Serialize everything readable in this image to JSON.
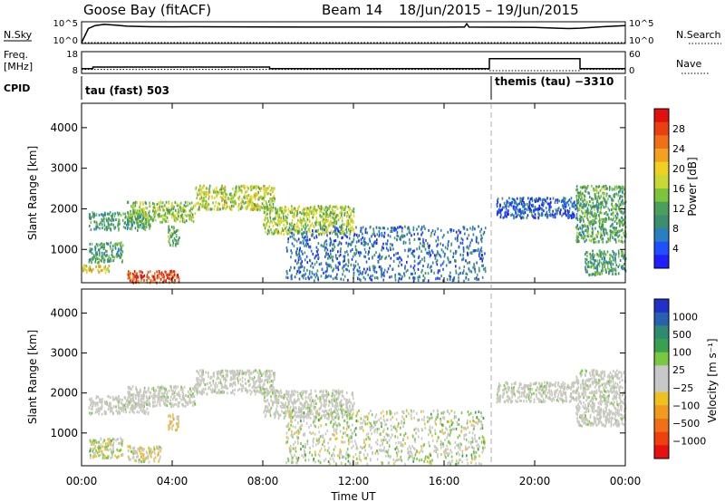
{
  "header": {
    "station": "Goose Bay (fitACF)",
    "beam": "Beam 14",
    "dates": "18/Jun/2015 – 19/Jun/2015"
  },
  "noise_panel": {
    "left_label": "N.Sky",
    "right_label": "N.Search",
    "ticks_left": [
      "10^5",
      "10^0"
    ],
    "ticks_right": [
      "10^5",
      "10^0"
    ]
  },
  "freq_panel": {
    "left_label_1": "Freq.",
    "left_label_2": "[MHz]",
    "right_label": "Nave",
    "ticks_left": [
      "18",
      "8"
    ],
    "ticks_right": [
      "60",
      "0"
    ]
  },
  "cpid": {
    "label": "CPID",
    "mode_1": "tau (fast) 503",
    "mode_2": "themis (tau) −3310"
  },
  "x_axis": {
    "label": "Time UT",
    "ticks": [
      "00:00",
      "04:00",
      "08:00",
      "12:00",
      "16:00",
      "20:00",
      "00:00"
    ]
  },
  "power_panel": {
    "ylabel": "Slant Range [km]",
    "yticks": [
      "1000",
      "2000",
      "3000",
      "4000"
    ],
    "colorbar_label": "Power [dB]",
    "colorbar_ticks": [
      "4",
      "8",
      "12",
      "16",
      "20",
      "24",
      "28"
    ],
    "colorbar_colors": [
      "#1e1eff",
      "#1e50ff",
      "#2a7fbf",
      "#3b8e6f",
      "#4aa05a",
      "#7cc43a",
      "#c8d834",
      "#f0d020",
      "#f4a020",
      "#f07018",
      "#e84010",
      "#e01010"
    ]
  },
  "velocity_panel": {
    "ylabel": "Slant Range [km]",
    "yticks": [
      "1000",
      "2000",
      "3000",
      "4000"
    ],
    "colorbar_label": "Velocity [m s⁻¹]",
    "colorbar_ticks": [
      "1000",
      "500",
      "100",
      "25",
      "−25",
      "−100",
      "−500",
      "−1000"
    ],
    "colorbar_colors": [
      "#2030c8",
      "#2a60b0",
      "#2e8a70",
      "#3aa050",
      "#78c840",
      "#c8c8c8",
      "#c8c8c8",
      "#f0c020",
      "#f09a20",
      "#f07018",
      "#f04010",
      "#e81010"
    ]
  },
  "chart_data": [
    {
      "type": "line",
      "title": "N.Sky / N.Search",
      "x_range_hours": [
        0,
        24
      ],
      "y_scale": "log",
      "ylim": [
        1,
        100000
      ],
      "series": [
        {
          "name": "N.Sky",
          "x": [
            0,
            0.3,
            0.6,
            1,
            1.5,
            2,
            3,
            4,
            5,
            6,
            8,
            10,
            12,
            14,
            16,
            16.9,
            17.0,
            17.1,
            18,
            20,
            21,
            21.5,
            22,
            23,
            24
          ],
          "y": [
            1,
            5000,
            30000,
            60000,
            40000,
            20000,
            15000,
            14000,
            15000,
            14000,
            13000,
            12000,
            12000,
            11000,
            11000,
            12000,
            90000,
            12000,
            11000,
            10000,
            6000,
            5000,
            6000,
            15000,
            30000
          ]
        },
        {
          "name": "N.Search",
          "x": [
            0,
            24
          ],
          "y": [
            1,
            1
          ]
        }
      ]
    },
    {
      "type": "line",
      "title": "Freq / Nave",
      "x_range_hours": [
        0,
        24
      ],
      "series": [
        {
          "name": "Freq. [MHz]",
          "ylim": [
            8,
            18
          ],
          "x": [
            0,
            0.5,
            0.5,
            8.3,
            8.3,
            18,
            18,
            22,
            22,
            24
          ],
          "y": [
            10.5,
            10.5,
            11.5,
            11.5,
            10.5,
            10.5,
            17,
            17,
            10.5,
            10.5
          ]
        },
        {
          "name": "Nave",
          "ylim": [
            0,
            60
          ],
          "x": [
            0,
            18,
            18,
            22,
            22,
            24
          ],
          "y": [
            12,
            12,
            7,
            7,
            12,
            12
          ]
        }
      ]
    },
    {
      "type": "heatmap",
      "title": "Power [dB]",
      "x_label": "Time UT",
      "y_label": "Slant Range [km]",
      "x_range_hours": [
        0,
        24
      ],
      "ylim": [
        180,
        4600
      ],
      "z_range": [
        0,
        30
      ],
      "patches": [
        {
          "t": [
            0.3,
            3.0
          ],
          "r": [
            1500,
            1950
          ],
          "v": 10
        },
        {
          "t": [
            2.0,
            5.0
          ],
          "r": [
            1700,
            2200
          ],
          "v": 14
        },
        {
          "t": [
            5.0,
            8.5
          ],
          "r": [
            2000,
            2600
          ],
          "v": 16
        },
        {
          "t": [
            8.0,
            12.0
          ],
          "r": [
            1400,
            2100
          ],
          "v": 15
        },
        {
          "t": [
            3.8,
            4.3
          ],
          "r": [
            1100,
            1600
          ],
          "v": 12
        },
        {
          "t": [
            0.3,
            1.8
          ],
          "r": [
            700,
            1200
          ],
          "v": 10
        },
        {
          "t": [
            2.0,
            4.3
          ],
          "r": [
            200,
            500
          ],
          "v": 26
        },
        {
          "t": [
            0.0,
            1.2
          ],
          "r": [
            450,
            650
          ],
          "v": 18
        },
        {
          "t": [
            9.0,
            17.8
          ],
          "r": [
            250,
            1600
          ],
          "v": 6
        },
        {
          "t": [
            21.8,
            24.0
          ],
          "r": [
            1200,
            2600
          ],
          "v": 11
        },
        {
          "t": [
            22.2,
            24.0
          ],
          "r": [
            400,
            1000
          ],
          "v": 10
        },
        {
          "t": [
            18.3,
            21.8
          ],
          "r": [
            1800,
            2300
          ],
          "v": 5
        }
      ]
    },
    {
      "type": "heatmap",
      "title": "Velocity [m s⁻¹]",
      "x_label": "Time UT",
      "y_label": "Slant Range [km]",
      "x_range_hours": [
        0,
        24
      ],
      "ylim": [
        180,
        4600
      ],
      "z_range": [
        -1000,
        1000
      ],
      "patches": [
        {
          "t": [
            0.3,
            3.0
          ],
          "r": [
            1500,
            1950
          ],
          "v": 0
        },
        {
          "t": [
            2.0,
            5.0
          ],
          "r": [
            1700,
            2200
          ],
          "v": 0
        },
        {
          "t": [
            5.0,
            8.5
          ],
          "r": [
            2000,
            2600
          ],
          "v": 0
        },
        {
          "t": [
            8.0,
            12.0
          ],
          "r": [
            1400,
            2100
          ],
          "v": 0
        },
        {
          "t": [
            3.8,
            4.3
          ],
          "r": [
            1100,
            1500
          ],
          "v": -200
        },
        {
          "t": [
            0.3,
            1.8
          ],
          "r": [
            400,
            900
          ],
          "v": 50
        },
        {
          "t": [
            2.0,
            3.5
          ],
          "r": [
            300,
            700
          ],
          "v": -80
        },
        {
          "t": [
            9.0,
            17.8
          ],
          "r": [
            250,
            1600
          ],
          "v": 60
        },
        {
          "t": [
            21.8,
            24.0
          ],
          "r": [
            1200,
            2600
          ],
          "v": 0
        },
        {
          "t": [
            18.3,
            21.8
          ],
          "r": [
            1800,
            2300
          ],
          "v": 0
        }
      ]
    }
  ]
}
